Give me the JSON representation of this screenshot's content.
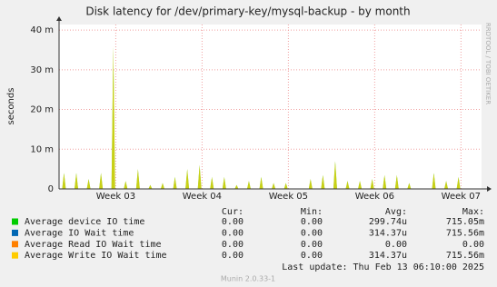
{
  "chart_data": {
    "type": "bar",
    "title": "Disk latency for /dev/primary-key/mysql-backup - by month",
    "y_label": "seconds",
    "side_note": "RRDTOOL / TOBI OETIKER",
    "x": [
      0.4,
      1.4,
      2.4,
      3.4,
      4.4,
      5.4,
      6.4,
      7.4,
      8.4,
      9.4,
      10.4,
      11.4,
      12.4,
      13.4,
      14.4,
      15.4,
      16.4,
      17.4,
      18.4,
      20.4,
      21.4,
      22.4,
      23.4,
      24.4,
      25.4,
      26.4,
      27.4,
      28.4,
      30.4,
      31.4,
      32.4
    ],
    "xlim": [
      0,
      34.27
    ],
    "xticks": [
      {
        "value": 4.6,
        "label": "Week 03"
      },
      {
        "value": 11.6,
        "label": "Week 04"
      },
      {
        "value": 18.6,
        "label": "Week 05"
      },
      {
        "value": 25.6,
        "label": "Week 06"
      },
      {
        "value": 32.6,
        "label": "Week 07"
      }
    ],
    "ylim": [
      0,
      0.0414
    ],
    "yticks": [
      0,
      {
        "value": 0.01,
        "label": "10 m"
      },
      {
        "value": 0.02,
        "label": "20 m"
      },
      {
        "value": 0.03,
        "label": "30 m"
      },
      {
        "value": 0.04,
        "label": "40 m"
      }
    ],
    "grid": true,
    "series": [
      {
        "name": "Average device IO time",
        "color": "#00cc00",
        "values": [
          0.004,
          0.004,
          0.0025,
          0.004,
          0.0355,
          0.002,
          0.005,
          0.001,
          0.0015,
          0.003,
          0.005,
          0.006,
          0.003,
          0.003,
          0.001,
          0.002,
          0.003,
          0.0015,
          0.0015,
          0.0025,
          0.0035,
          0.007,
          0.002,
          0.002,
          0.0025,
          0.0035,
          0.0035,
          0.0015,
          0.004,
          0.002,
          0.003
        ]
      },
      {
        "name": "Average IO Wait time",
        "color": "#0066b3"
      },
      {
        "name": "Average Read IO Wait time",
        "color": "#ff8000"
      },
      {
        "name": "Average Write IO Wait time",
        "color": "#ffcc00",
        "values": [
          0.004,
          0.004,
          0.0025,
          0.004,
          0.036,
          0.002,
          0.005,
          0.001,
          0.0015,
          0.003,
          0.005,
          0.006,
          0.003,
          0.003,
          0.001,
          0.002,
          0.003,
          0.0015,
          0.0015,
          0.0025,
          0.0035,
          0.007,
          0.002,
          0.002,
          0.0025,
          0.0035,
          0.0035,
          0.0015,
          0.004,
          0.002,
          0.003
        ]
      }
    ],
    "summary": {
      "headers": [
        "Cur:",
        "Min:",
        "Avg:",
        "Max:"
      ],
      "rows": [
        [
          "0.00",
          "0.00",
          "299.74u",
          "715.05m"
        ],
        [
          "0.00",
          "0.00",
          "314.37u",
          "715.56m"
        ],
        [
          "0.00",
          "0.00",
          "0.00",
          "0.00"
        ],
        [
          "0.00",
          "0.00",
          "314.37u",
          "715.56m"
        ]
      ]
    },
    "last_update": "Last update:  Thu Feb 13 06:10:00 2025",
    "footer": "Munin 2.0.33-1"
  }
}
